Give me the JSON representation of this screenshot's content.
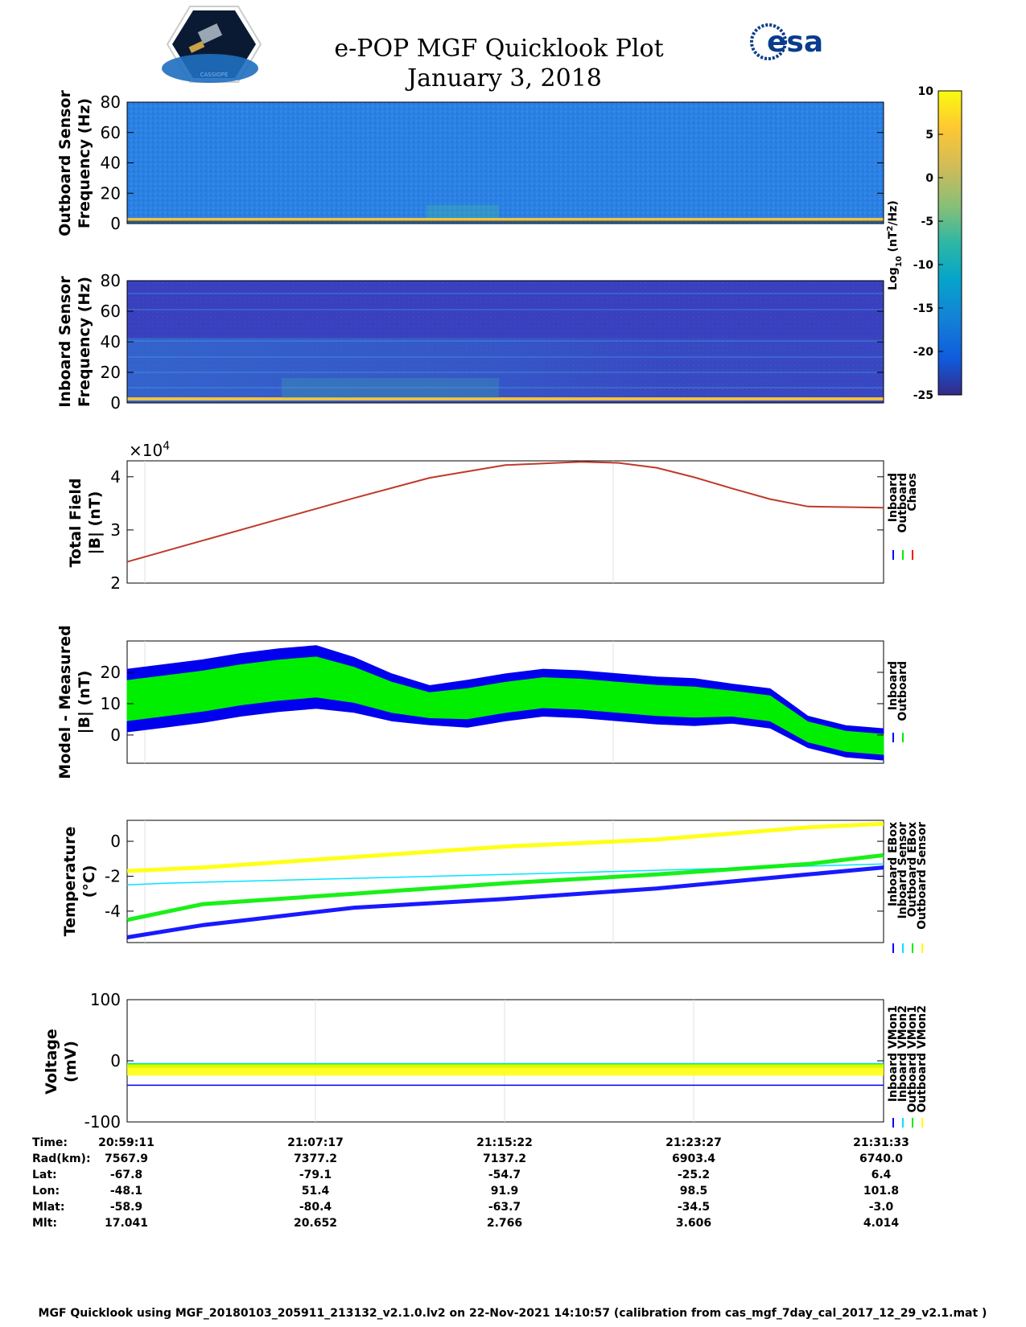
{
  "title": "e-POP MGF Quicklook Plot",
  "date": "January 3, 2018",
  "logos": {
    "cassiope": "CASSIOPE",
    "esa": "esa"
  },
  "chart_data": [
    {
      "type": "heatmap",
      "name": "outboard-spectrogram",
      "ylabel": [
        "Outboard Sensor",
        "Frequency (Hz)"
      ],
      "yticks": [
        0,
        20,
        40,
        60,
        80
      ],
      "ylim": [
        0,
        80
      ],
      "colormap": "parula",
      "description_only_visual": true
    },
    {
      "type": "heatmap",
      "name": "inboard-spectrogram",
      "ylabel": [
        "Inboard Sensor",
        "Frequency (Hz)"
      ],
      "yticks": [
        0,
        20,
        40,
        60,
        80
      ],
      "ylim": [
        0,
        80
      ],
      "colormap": "parula"
    },
    {
      "type": "colorbar",
      "label": "Log10 (nT^2/Hz)",
      "label_main": "Log",
      "label_sub": "10",
      "label_rest": " (nT",
      "label_sup": "2",
      "label_end": "/Hz)",
      "ticks": [
        10,
        5,
        0,
        -5,
        -10,
        -15,
        -20,
        -25
      ],
      "clim": [
        -25,
        10
      ]
    },
    {
      "type": "line",
      "name": "total-field",
      "ylabel": [
        "Total Field",
        "|B| (nT)"
      ],
      "exponent_base": "×10",
      "exponent": "4",
      "yticks": [
        2,
        3,
        4
      ],
      "ylim": [
        2,
        4.3
      ],
      "legend": [
        "Inboard",
        "Outboard",
        "Chaos"
      ],
      "colors": [
        "#0000ff",
        "#00ee00",
        "#ff0000"
      ],
      "series_x": [
        0,
        0.1,
        0.2,
        0.3,
        0.4,
        0.5,
        0.6,
        0.65,
        0.7,
        0.75,
        0.8,
        0.85,
        0.9,
        0.95,
        1.0
      ],
      "series_y": [
        2.4,
        2.8,
        3.2,
        3.6,
        3.98,
        4.22,
        4.28,
        4.26,
        4.17,
        3.99,
        3.78,
        3.58,
        3.44,
        3.43,
        3.42
      ]
    },
    {
      "type": "line",
      "name": "model-minus-measured",
      "ylabel": [
        "Model - Measured",
        "|B| (nT)"
      ],
      "yticks": [
        0,
        10,
        20
      ],
      "ylim": [
        -9,
        30
      ],
      "legend": [
        "Inboard",
        "Outboard"
      ],
      "colors": [
        "#0000ff",
        "#00ee00"
      ],
      "series_x": [
        0,
        0.05,
        0.1,
        0.15,
        0.2,
        0.25,
        0.3,
        0.35,
        0.4,
        0.45,
        0.5,
        0.55,
        0.6,
        0.65,
        0.7,
        0.75,
        0.8,
        0.85,
        0.9,
        0.95,
        1.0
      ],
      "series_center": [
        11,
        12.5,
        14,
        16,
        17.5,
        18.5,
        16,
        12,
        9.5,
        10,
        12,
        13.5,
        13,
        12,
        11,
        10.5,
        10,
        8.5,
        1,
        -2,
        -3
      ],
      "series_half_width": [
        8,
        8,
        8,
        8,
        8,
        8,
        7,
        6,
        5,
        6,
        6,
        6,
        6,
        6,
        6,
        6,
        5,
        5,
        4,
        4,
        4
      ]
    },
    {
      "type": "line",
      "name": "temperature",
      "ylabel": [
        "Temperature",
        "(°C)"
      ],
      "yticks": [
        -4,
        -2,
        0
      ],
      "ylim": [
        -5.8,
        1.2
      ],
      "legend": [
        "Inboard EBox",
        "Inboard Sensor",
        "Outboard EBox",
        "Outboard Sensor"
      ],
      "colors": [
        "#0000ff",
        "#00e5ff",
        "#00ee00",
        "#ffff00"
      ],
      "series": [
        {
          "name": "Inboard EBox",
          "x": [
            0,
            0.1,
            0.3,
            0.5,
            0.7,
            0.9,
            1.0
          ],
          "y": [
            -5.5,
            -4.8,
            -3.8,
            -3.3,
            -2.7,
            -1.9,
            -1.5
          ]
        },
        {
          "name": "Inboard Sensor",
          "x": [
            0,
            0.05,
            0.5,
            1.0
          ],
          "y": [
            -2.5,
            -2.4,
            -1.9,
            -1.3
          ]
        },
        {
          "name": "Outboard EBox",
          "x": [
            0,
            0.1,
            0.3,
            0.5,
            0.7,
            0.9,
            1.0
          ],
          "y": [
            -4.5,
            -3.6,
            -3.0,
            -2.4,
            -1.9,
            -1.3,
            -0.8
          ]
        },
        {
          "name": "Outboard Sensor",
          "x": [
            0,
            0.1,
            0.3,
            0.5,
            0.7,
            0.9,
            1.0
          ],
          "y": [
            -1.7,
            -1.5,
            -0.9,
            -0.3,
            0.1,
            0.8,
            1.0
          ]
        }
      ]
    },
    {
      "type": "line",
      "name": "voltage",
      "ylabel": [
        "Voltage",
        "(mV)"
      ],
      "yticks": [
        -100,
        0,
        100
      ],
      "ylim": [
        -100,
        100
      ],
      "legend": [
        "Inboard VMon1",
        "Inboard VMon2",
        "Outboard VMon1",
        "Outboard VMon2"
      ],
      "colors": [
        "#0000ff",
        "#00e5ff",
        "#00ee00",
        "#ffff00"
      ],
      "series": [
        {
          "name": "Inboard VMon1",
          "level": -40
        },
        {
          "name": "Inboard VMon2",
          "level": -5
        },
        {
          "name": "Outboard VMon1",
          "level": -8
        },
        {
          "name": "Outboard VMon2",
          "level": -15
        }
      ]
    }
  ],
  "table": {
    "labels": [
      "Time:",
      "Rad(km):",
      "Lat:",
      "Lon:",
      "Mlat:",
      "Mlt:"
    ],
    "columns": [
      [
        "20:59:11",
        "7567.9",
        "-67.8",
        "-48.1",
        "-58.9",
        "17.041"
      ],
      [
        "21:07:17",
        "7377.2",
        "-79.1",
        "51.4",
        "-80.4",
        "20.652"
      ],
      [
        "21:15:22",
        "7137.2",
        "-54.7",
        "91.9",
        "-63.7",
        "2.766"
      ],
      [
        "21:23:27",
        "6903.4",
        "-25.2",
        "98.5",
        "-34.5",
        "3.606"
      ],
      [
        "21:31:33",
        "6740.0",
        "6.4",
        "101.8",
        "-3.0",
        "4.014"
      ]
    ]
  },
  "footer": "MGF Quicklook using MGF_20180103_205911_213132_v2.1.0.lv2 on 22-Nov-2021 14:10:57 (calibration from cas_mgf_7day_cal_2017_12_29_v2.1.mat )"
}
